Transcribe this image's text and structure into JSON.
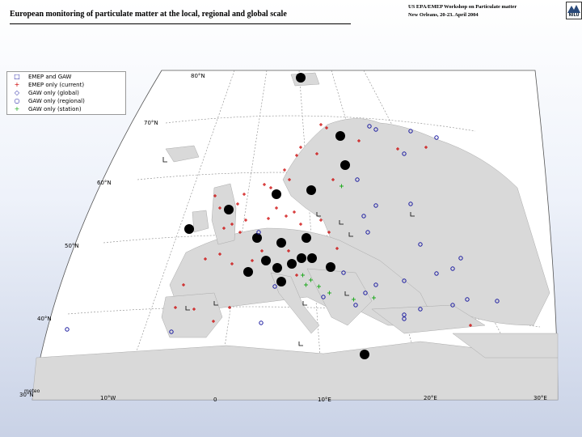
{
  "slide": {
    "title": "European monitoring of particulate matter at the local, regional and global scale",
    "workshop_line1": "US EPA/EMEP Workshop on Particulate matter",
    "workshop_line2": "New Orleans, 20-23. April 2004",
    "logo_text": "NILU"
  },
  "legend": {
    "items": [
      {
        "label": "EMEP and GAW",
        "symbol": "□",
        "color": "#1a1aa0"
      },
      {
        "label": "EMEP only (current)",
        "symbol": "+",
        "color": "#cc0000"
      },
      {
        "label": "GAW only (global)",
        "symbol": "◇",
        "color": "#1a1aa0"
      },
      {
        "label": "GAW only (regional)",
        "symbol": "○",
        "color": "#1a1aa0"
      },
      {
        "label": "GAW only (station)",
        "symbol": "+",
        "color": "#22aa22"
      }
    ]
  },
  "graticule": {
    "lat_labels": [
      "80°N",
      "70°N",
      "60°N",
      "50°N",
      "40°N",
      "30°N"
    ],
    "lon_labels": [
      "10°W",
      "0",
      "10°E",
      "20°E",
      "30°E"
    ]
  },
  "credit": "meteo",
  "colors": {
    "ocean": "#ffffff",
    "land": "#d9d9d9",
    "big_site": "#000000",
    "emep_only": "#cc0000",
    "gaw_regional": "#1a1aa0",
    "gaw_station": "#22aa22"
  }
}
